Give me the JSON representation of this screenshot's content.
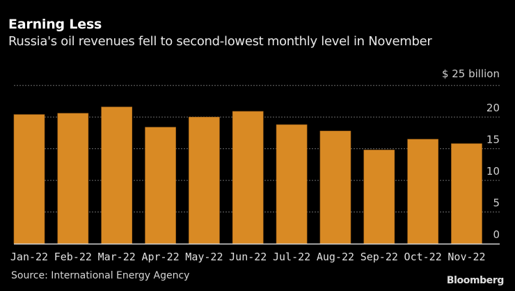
{
  "header": {
    "title": "Earning Less",
    "subtitle": "Russia's oil revenues fell to second-lowest monthly level in November"
  },
  "footer": {
    "source": "Source: International Energy Agency",
    "brand": "Bloomberg"
  },
  "colors": {
    "bar": "#d98a24",
    "bar_edge": "#a8661a",
    "gridline": "#6e6e6e",
    "axis": "#d8d8d8",
    "background": "#000000"
  },
  "chart_data": {
    "type": "bar",
    "title": "Earning Less",
    "subtitle": "Russia's oil revenues fell to second-lowest monthly level in November",
    "unit_label": "$ 25 billion",
    "xlabel": "",
    "ylabel": "$ billion",
    "categories": [
      "Jan-22",
      "Feb-22",
      "Mar-22",
      "Apr-22",
      "May-22",
      "Jun-22",
      "Jul-22",
      "Aug-22",
      "Sep-22",
      "Oct-22",
      "Nov-22"
    ],
    "values": [
      20.4,
      20.6,
      21.6,
      18.4,
      20.0,
      20.9,
      18.8,
      17.8,
      14.8,
      16.5,
      15.8
    ],
    "ylim": [
      0,
      25
    ],
    "yticks": [
      0,
      5,
      10,
      15,
      20,
      25
    ],
    "ytick_labels": [
      "0",
      "5",
      "10",
      "15",
      "20",
      ""
    ],
    "grid": true,
    "yaxis_side": "right",
    "legend": "none"
  }
}
